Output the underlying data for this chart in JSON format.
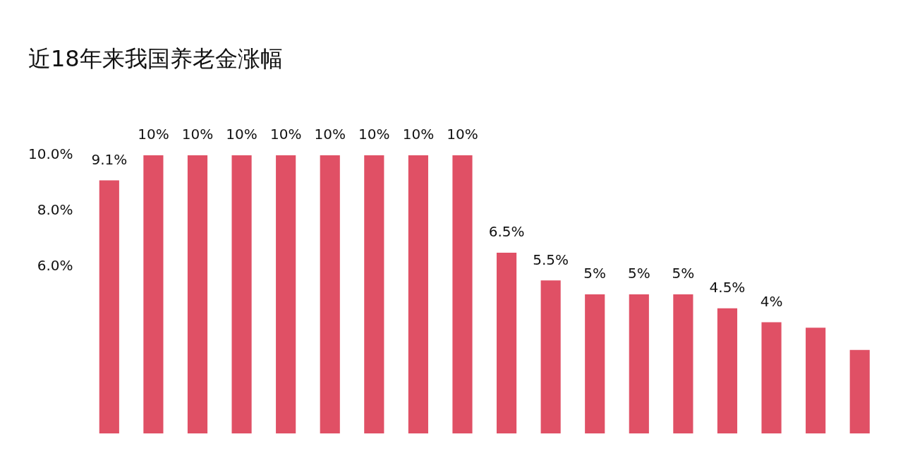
{
  "chart_data": {
    "type": "bar",
    "title": "近18年来我国养老金涨幅",
    "categories": [
      null,
      null,
      null,
      null,
      null,
      null,
      null,
      null,
      null,
      null,
      null,
      null,
      null,
      null,
      null,
      null,
      null,
      null
    ],
    "values": [
      9.1,
      10,
      10,
      10,
      10,
      10,
      10,
      10,
      10,
      6.5,
      5.5,
      5,
      5,
      5,
      4.5,
      4,
      3.8,
      3
    ],
    "value_labels": [
      "9.1%",
      "10%",
      "10%",
      "10%",
      "10%",
      "10%",
      "10%",
      "10%",
      "10%",
      "6.5%",
      "5.5%",
      "5%",
      "5%",
      "5%",
      "4.5%",
      "4%",
      null,
      null
    ],
    "color": "#e05065",
    "ylim": [
      0,
      10
    ],
    "yticks": [
      {
        "value": 6,
        "label": "6.0%"
      },
      {
        "value": 8,
        "label": "8.0%"
      },
      {
        "value": 10,
        "label": "10.0%"
      }
    ],
    "grid": false,
    "tick_labels": "y"
  }
}
